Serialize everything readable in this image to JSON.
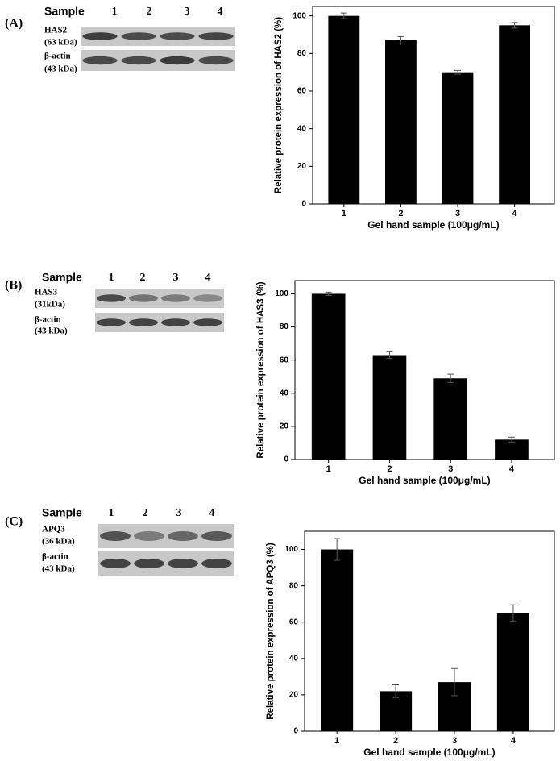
{
  "panels": [
    {
      "label": "(A)",
      "blot": {
        "header": "Sample",
        "lanes": [
          "1",
          "2",
          "3",
          "4"
        ],
        "rows": [
          {
            "name": "HAS2",
            "size": "(63 kDa)"
          },
          {
            "name": "β-actin",
            "size": "(43 kDa)"
          }
        ]
      }
    },
    {
      "label": "(B)",
      "blot": {
        "header": "Sample",
        "lanes": [
          "1",
          "2",
          "3",
          "4"
        ],
        "rows": [
          {
            "name": "HAS3",
            "size": "(31kDa)"
          },
          {
            "name": "β-actin",
            "size": "(43 kDa)"
          }
        ]
      }
    },
    {
      "label": "(C)",
      "blot": {
        "header": "Sample",
        "lanes": [
          "1",
          "2",
          "3",
          "4"
        ],
        "rows": [
          {
            "name": "APQ3",
            "size": "(36 kDa)"
          },
          {
            "name": "β-actin",
            "size": "(43 kDa)"
          }
        ]
      }
    }
  ],
  "chart_data": [
    {
      "type": "bar",
      "xlabel": "Gel hand sample (100μg/mL)",
      "ylabel": "Relative protein expression of HAS2 (%)",
      "categories": [
        "1",
        "2",
        "3",
        "4"
      ],
      "values": [
        100,
        87,
        70,
        95
      ],
      "errors": [
        1.5,
        2,
        1,
        1.5
      ],
      "color": "#000000",
      "ylim": [
        0,
        105
      ],
      "yticks": [
        0,
        20,
        40,
        60,
        80,
        100
      ]
    },
    {
      "type": "bar",
      "xlabel": "Gel hand sample (100μg/mL)",
      "ylabel": "Relative protein expression of HAS3 (%)",
      "categories": [
        "1",
        "2",
        "3",
        "4"
      ],
      "values": [
        100,
        63,
        49,
        12
      ],
      "errors": [
        1,
        2,
        2.5,
        1.5
      ],
      "color": "#000000",
      "ylim": [
        0,
        108
      ],
      "yticks": [
        0,
        20,
        40,
        60,
        80,
        100
      ]
    },
    {
      "type": "bar",
      "xlabel": "Gel hand sample (100μg/mL)",
      "ylabel": "Relative protein expression of APQ3 (%)",
      "categories": [
        "1",
        "2",
        "3",
        "4"
      ],
      "values": [
        100,
        22,
        27,
        65
      ],
      "errors": [
        6,
        3.5,
        7.5,
        4.5
      ],
      "color": "#000000",
      "ylim": [
        0,
        110
      ],
      "yticks": [
        0,
        20,
        40,
        60,
        80,
        100
      ]
    }
  ]
}
